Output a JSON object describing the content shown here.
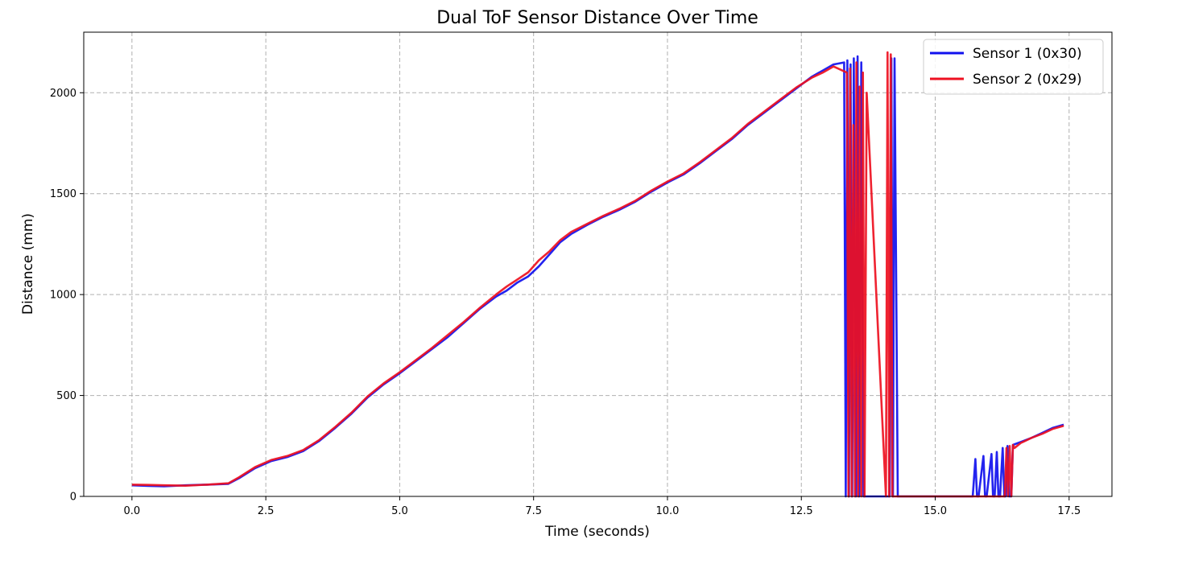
{
  "chart_data": {
    "type": "line",
    "title": "Dual ToF Sensor Distance Over Time",
    "xlabel": "Time (seconds)",
    "ylabel": "Distance (mm)",
    "xlim": [
      -0.9,
      18.3
    ],
    "ylim": [
      0,
      2300
    ],
    "xticks": [
      0.0,
      2.5,
      5.0,
      7.5,
      10.0,
      12.5,
      15.0,
      17.5
    ],
    "xtick_labels": [
      "0.0",
      "2.5",
      "5.0",
      "7.5",
      "10.0",
      "12.5",
      "15.0",
      "17.5"
    ],
    "yticks": [
      0,
      500,
      1000,
      1500,
      2000
    ],
    "ytick_labels": [
      "0",
      "500",
      "1000",
      "1500",
      "2000"
    ],
    "grid": true,
    "legend_position": "top-right",
    "series": [
      {
        "name": "Sensor 1 (0x30)",
        "color": "#1010ee",
        "x": [
          0.0,
          0.3,
          0.6,
          1.0,
          1.4,
          1.8,
          2.0,
          2.3,
          2.6,
          2.9,
          3.2,
          3.5,
          3.8,
          4.1,
          4.4,
          4.7,
          5.0,
          5.3,
          5.6,
          5.9,
          6.2,
          6.5,
          6.8,
          7.0,
          7.2,
          7.4,
          7.6,
          7.8,
          8.0,
          8.2,
          8.5,
          8.8,
          9.1,
          9.4,
          9.7,
          10.0,
          10.3,
          10.6,
          10.9,
          11.2,
          11.5,
          11.8,
          12.1,
          12.4,
          12.7,
          12.9,
          13.1,
          13.3,
          13.33,
          13.36,
          13.39,
          13.42,
          13.45,
          13.48,
          13.52,
          13.55,
          13.58,
          13.62,
          13.66,
          13.7,
          14.15,
          14.18,
          14.21,
          14.24,
          14.3,
          15.0,
          15.7,
          15.75,
          15.78,
          15.81,
          15.9,
          15.93,
          15.96,
          16.05,
          16.08,
          16.11,
          16.15,
          16.18,
          16.21,
          16.26,
          16.29,
          16.32,
          16.35,
          16.38,
          16.42,
          16.45,
          16.6,
          16.8,
          17.0,
          17.2,
          17.4
        ],
        "y": [
          55,
          52,
          50,
          55,
          58,
          62,
          90,
          140,
          175,
          195,
          225,
          275,
          340,
          410,
          490,
          555,
          610,
          670,
          730,
          790,
          860,
          930,
          990,
          1020,
          1060,
          1090,
          1140,
          1200,
          1260,
          1300,
          1345,
          1385,
          1420,
          1460,
          1510,
          1555,
          1595,
          1650,
          1710,
          1770,
          1840,
          1900,
          1960,
          2020,
          2080,
          2110,
          2140,
          2150,
          0,
          2160,
          0,
          2140,
          0,
          2170,
          0,
          2180,
          0,
          2150,
          0,
          0,
          0,
          2170,
          0,
          2170,
          0,
          0,
          0,
          185,
          0,
          0,
          200,
          0,
          0,
          210,
          0,
          0,
          220,
          0,
          0,
          240,
          0,
          0,
          250,
          0,
          0,
          255,
          270,
          290,
          315,
          340,
          355
        ]
      },
      {
        "name": "Sensor 2 (0x29)",
        "color": "#ee1020",
        "x": [
          0.0,
          0.3,
          0.6,
          1.0,
          1.4,
          1.8,
          2.0,
          2.3,
          2.6,
          2.9,
          3.2,
          3.5,
          3.8,
          4.1,
          4.4,
          4.7,
          5.0,
          5.3,
          5.6,
          5.9,
          6.2,
          6.5,
          6.8,
          7.0,
          7.2,
          7.4,
          7.6,
          7.8,
          8.0,
          8.2,
          8.5,
          8.8,
          9.1,
          9.4,
          9.7,
          10.0,
          10.3,
          10.6,
          10.9,
          11.2,
          11.5,
          11.8,
          12.1,
          12.4,
          12.7,
          12.9,
          13.1,
          13.35,
          13.38,
          13.41,
          13.44,
          13.47,
          13.5,
          13.53,
          13.56,
          13.59,
          13.62,
          13.65,
          13.68,
          13.72,
          14.08,
          14.11,
          14.14,
          14.17,
          14.2,
          15.0,
          16.0,
          16.3,
          16.33,
          16.36,
          16.39,
          16.42,
          16.45,
          16.48,
          16.6,
          16.8,
          17.0,
          17.2,
          17.4
        ],
        "y": [
          58,
          57,
          55,
          53,
          58,
          65,
          95,
          145,
          180,
          200,
          230,
          280,
          345,
          415,
          495,
          560,
          615,
          675,
          735,
          800,
          865,
          935,
          1000,
          1040,
          1075,
          1110,
          1170,
          1215,
          1270,
          1310,
          1350,
          1390,
          1425,
          1465,
          1515,
          1560,
          1600,
          1655,
          1715,
          1775,
          1845,
          1905,
          1965,
          2025,
          2075,
          2100,
          2130,
          2100,
          0,
          2120,
          0,
          1840,
          0,
          2150,
          0,
          2030,
          0,
          2100,
          0,
          2000,
          0,
          2200,
          0,
          2190,
          0,
          0,
          0,
          0,
          240,
          0,
          250,
          0,
          255,
          240,
          265,
          290,
          310,
          335,
          350
        ]
      }
    ]
  }
}
